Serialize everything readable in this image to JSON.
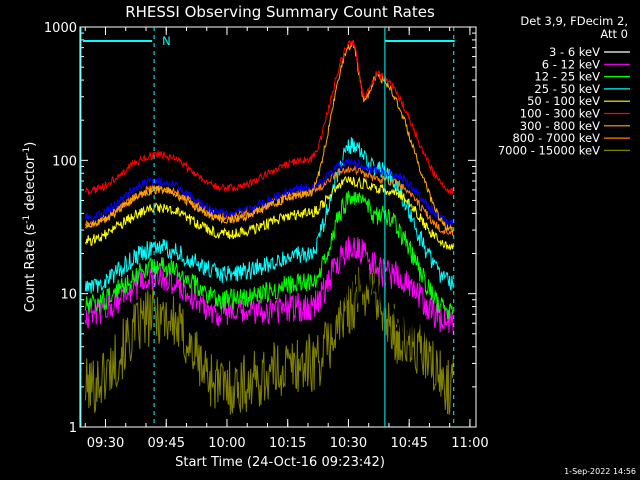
{
  "chart_data": {
    "type": "line",
    "title": "RHESSI Observing Summary Count Rates",
    "xlabel": "Start Time (24-Oct-16 09:23:42)",
    "ylabel": "Count Rate (s⁻¹ detector⁻¹)",
    "ylabel_base": "Count Rate (s",
    "ylabel_sup1": "-1",
    "ylabel_mid": " detector",
    "ylabel_sup2": "-1",
    "ylabel_end": ")",
    "y_scale": "log",
    "ylim": [
      1,
      1000
    ],
    "xlim": [
      "09:23:42",
      "11:00"
    ],
    "x_ticks": [
      "09:30",
      "09:45",
      "10:00",
      "10:15",
      "10:30",
      "10:45",
      "11:00"
    ],
    "y_ticks": [
      "1",
      "10",
      "100",
      "1000"
    ],
    "legend_header": [
      "Det 3,9, FDecim 2,",
      "Att 0"
    ],
    "legend_position": "right",
    "footer": "1-Sep-2022 14:56",
    "annotations": [
      {
        "text": "N",
        "x": "09:42"
      }
    ],
    "dashed_lines_x": [
      "09:42",
      "10:56"
    ],
    "night_marker_lines_x": [
      "09:23:42",
      "10:39"
    ],
    "series": [
      {
        "name": "3 - 6 keV",
        "color": "#000000",
        "key_points": [
          [
            "09:25",
            8
          ],
          [
            "09:43",
            14
          ],
          [
            "10:00",
            8
          ],
          [
            "10:20",
            8
          ],
          [
            "10:35",
            12
          ],
          [
            "10:45",
            6
          ],
          [
            "10:56",
            5
          ]
        ]
      },
      {
        "name": "6 - 12 keV",
        "color": "#ff00ff",
        "key_points": [
          [
            "09:25",
            7
          ],
          [
            "09:43",
            13
          ],
          [
            "10:00",
            7
          ],
          [
            "10:20",
            8
          ],
          [
            "10:31",
            22
          ],
          [
            "10:40",
            14
          ],
          [
            "10:56",
            6
          ]
        ]
      },
      {
        "name": "12 - 25 keV",
        "color": "#00ff00",
        "key_points": [
          [
            "09:25",
            8
          ],
          [
            "09:43",
            16
          ],
          [
            "10:00",
            9
          ],
          [
            "10:20",
            12
          ],
          [
            "10:31",
            52
          ],
          [
            "10:38",
            38
          ],
          [
            "10:56",
            7
          ]
        ]
      },
      {
        "name": "25 - 50 keV",
        "color": "#00ffff",
        "key_points": [
          [
            "09:25",
            11
          ],
          [
            "09:43",
            22
          ],
          [
            "10:00",
            14
          ],
          [
            "10:20",
            20
          ],
          [
            "10:31",
            130
          ],
          [
            "10:37",
            85
          ],
          [
            "10:56",
            12
          ]
        ]
      },
      {
        "name": "50 - 100 keV",
        "color": "#ffff00",
        "key_points": [
          [
            "09:25",
            25
          ],
          [
            "09:43",
            44
          ],
          [
            "10:00",
            28
          ],
          [
            "10:20",
            40
          ],
          [
            "10:30",
            70
          ],
          [
            "10:40",
            60
          ],
          [
            "10:56",
            22
          ]
        ]
      },
      {
        "name": "100 - 300 keV",
        "color": "#ff0000",
        "key_points": [
          [
            "09:25",
            58
          ],
          [
            "09:43",
            110
          ],
          [
            "10:00",
            62
          ],
          [
            "10:20",
            100
          ],
          [
            "10:31",
            760
          ],
          [
            "10:34",
            300
          ],
          [
            "10:37",
            440
          ],
          [
            "10:56",
            58
          ]
        ]
      },
      {
        "name": "300 - 800 keV",
        "color": "#ffaa00",
        "key_points": [
          [
            "09:25",
            32
          ],
          [
            "09:43",
            60
          ],
          [
            "10:00",
            36
          ],
          [
            "10:20",
            55
          ],
          [
            "10:31",
            740
          ],
          [
            "10:34",
            290
          ],
          [
            "10:37",
            420
          ],
          [
            "10:56",
            30
          ]
        ]
      },
      {
        "name": "800 - 7000 keV",
        "color": "#ff7f00",
        "key_points": [
          [
            "09:25",
            33
          ],
          [
            "09:43",
            62
          ],
          [
            "10:00",
            38
          ],
          [
            "10:20",
            58
          ],
          [
            "10:30",
            85
          ],
          [
            "10:40",
            70
          ],
          [
            "10:56",
            28
          ]
        ]
      },
      {
        "name": "7000 - 15000 keV",
        "color": "#808000",
        "key_points": [
          [
            "09:25",
            2
          ],
          [
            "09:43",
            7
          ],
          [
            "10:00",
            2
          ],
          [
            "10:20",
            3
          ],
          [
            "10:35",
            11
          ],
          [
            "10:45",
            4
          ],
          [
            "10:56",
            2
          ]
        ]
      }
    ],
    "series_blue": {
      "name": "",
      "color": "#0000ff",
      "key_points": [
        [
          "09:25",
          37
        ],
        [
          "09:43",
          70
        ],
        [
          "10:00",
          40
        ],
        [
          "10:20",
          62
        ],
        [
          "10:30",
          95
        ],
        [
          "10:40",
          80
        ],
        [
          "10:56",
          34
        ]
      ]
    }
  }
}
